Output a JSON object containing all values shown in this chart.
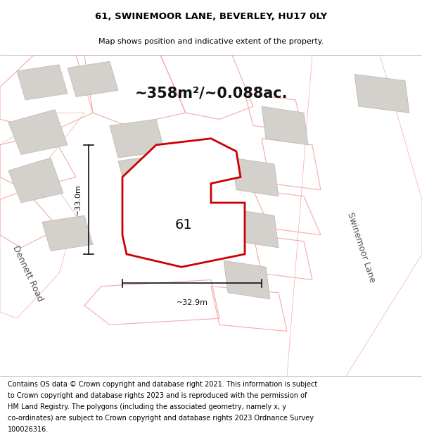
{
  "title_line1": "61, SWINEMOOR LANE, BEVERLEY, HU17 0LY",
  "title_line2": "Map shows position and indicative extent of the property.",
  "area_label": "~358m²/~0.088ac.",
  "dim_vertical": "~33.0m",
  "dim_horizontal": "~32.9m",
  "number_label": "61",
  "street_label_right": "Swinemoor Lane",
  "street_label_left": "Dennett Road",
  "footer_lines": [
    "Contains OS data © Crown copyright and database right 2021. This information is subject",
    "to Crown copyright and database rights 2023 and is reproduced with the permission of",
    "HM Land Registry. The polygons (including the associated geometry, namely x, y",
    "co-ordinates) are subject to Crown copyright and database rights 2023 Ordnance Survey",
    "100026316."
  ],
  "map_bg": "#f2f0ed",
  "road_fill": "#ffffff",
  "building_fill": "#d4d0cb",
  "building_stroke": "#b8b4af",
  "plot_line_color": "#f5aaaa",
  "highlight_color": "#cc0000",
  "highlight_fill": "#ffffff",
  "dim_line_color": "#111111",
  "title_fontsize": 9.5,
  "subtitle_fontsize": 8,
  "area_fontsize": 15,
  "dim_fontsize": 8,
  "number_fontsize": 14,
  "street_fontsize": 9,
  "footer_fontsize": 7
}
